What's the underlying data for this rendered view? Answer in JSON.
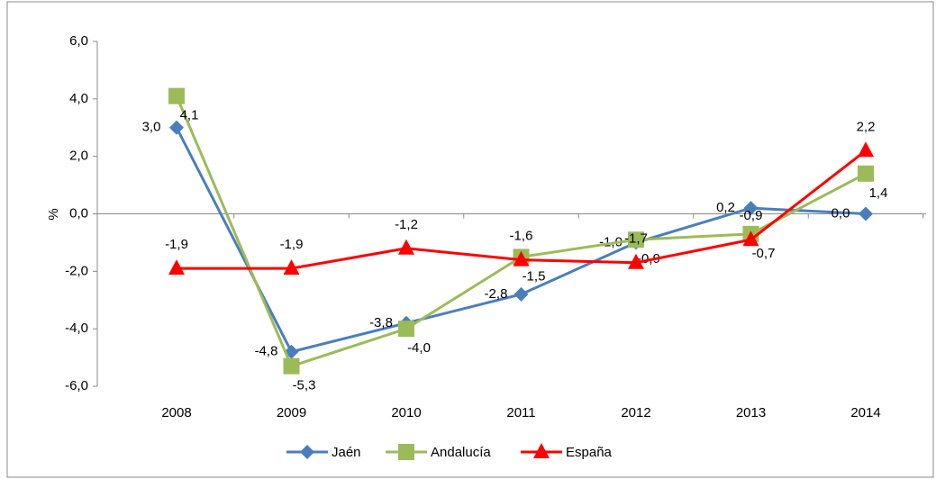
{
  "chart_data": {
    "type": "line",
    "y_label": "%",
    "categories": [
      "2008",
      "2009",
      "2010",
      "2011",
      "2012",
      "2013",
      "2014"
    ],
    "series": [
      {
        "name": "Jaén",
        "color": "#4a7ebb",
        "marker": "diamond",
        "values": [
          3.0,
          -4.8,
          -3.8,
          -2.8,
          -1.0,
          0.2,
          0.0
        ],
        "value_labels": [
          "3,0",
          "-4,8",
          "-3,8",
          "-2,8",
          "-1,0",
          "0,2",
          "0,0"
        ]
      },
      {
        "name": "Andalucía",
        "color": "#9bbb59",
        "marker": "square",
        "values": [
          4.1,
          -5.3,
          -4.0,
          -1.5,
          -0.9,
          -0.7,
          1.4
        ],
        "value_labels": [
          "4,1",
          "-5,3",
          "-4,0",
          "-1,5",
          "-0,9",
          "-0,7",
          "1,4"
        ]
      },
      {
        "name": "España",
        "color": "#ff0000",
        "marker": "triangle",
        "values": [
          -1.9,
          -1.9,
          -1.2,
          -1.6,
          -1.7,
          -0.9,
          2.2
        ],
        "value_labels": [
          "-1,9",
          "-1,9",
          "-1,2",
          "-1,6",
          "-1,7",
          "-0,9",
          "2,2"
        ]
      }
    ],
    "ylim": [
      -6,
      6
    ],
    "yticks": [
      {
        "value": -6,
        "label": "-6,0"
      },
      {
        "value": -4,
        "label": "-4,0"
      },
      {
        "value": -2,
        "label": "-2,0"
      },
      {
        "value": 0,
        "label": "0,0"
      },
      {
        "value": 2,
        "label": "2,0"
      },
      {
        "value": 4,
        "label": "4,0"
      },
      {
        "value": 6,
        "label": "6,0"
      }
    ],
    "legend": "bottom"
  }
}
